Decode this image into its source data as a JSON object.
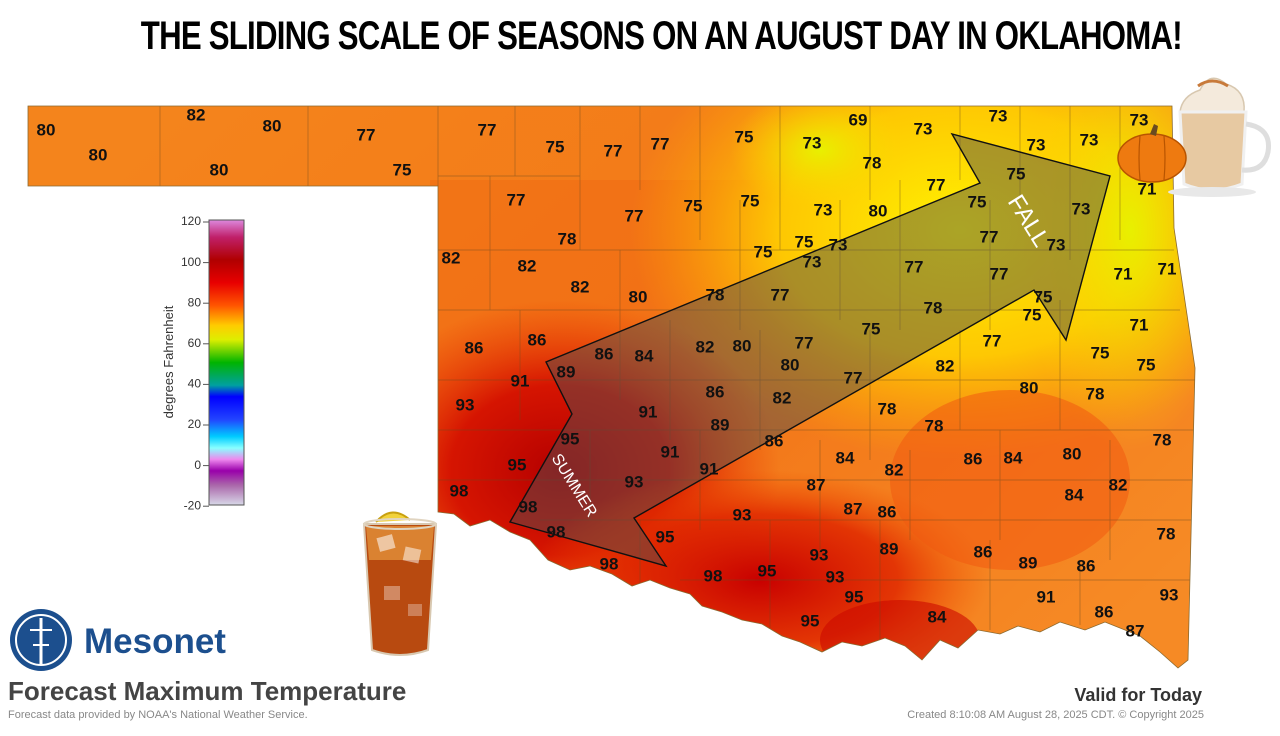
{
  "headline": "THE SLIDING SCALE OF SEASONS ON AN AUGUST DAY IN OKLAHOMA!",
  "legend": {
    "title": "degrees Fahrenheit",
    "ticks": [
      "120",
      "100",
      "80",
      "60",
      "40",
      "20",
      "0",
      "-20"
    ],
    "colors": [
      "#dd88dd",
      "#b00000",
      "#ff2200",
      "#ffff00",
      "#00c800",
      "#0000ff",
      "#66ffff",
      "#aa00aa",
      "#d8d8e8"
    ]
  },
  "arrows": {
    "fall_label": "FALL",
    "summer_label": "SUMMER"
  },
  "temperatures": [
    {
      "v": "80"
    },
    {
      "v": "80"
    },
    {
      "v": "82"
    },
    {
      "v": "80"
    },
    {
      "v": "80"
    },
    {
      "v": "77"
    },
    {
      "v": "75"
    },
    {
      "v": "77"
    },
    {
      "v": "75"
    },
    {
      "v": "77"
    },
    {
      "v": "77"
    },
    {
      "v": "75"
    },
    {
      "v": "73"
    },
    {
      "v": "69"
    },
    {
      "v": "73"
    },
    {
      "v": "73"
    },
    {
      "v": "73"
    },
    {
      "v": "73"
    },
    {
      "v": "73"
    },
    {
      "v": "78"
    },
    {
      "v": "77"
    },
    {
      "v": "75"
    },
    {
      "v": "71"
    },
    {
      "v": "77"
    },
    {
      "v": "77"
    },
    {
      "v": "75"
    },
    {
      "v": "75"
    },
    {
      "v": "73"
    },
    {
      "v": "80"
    },
    {
      "v": "75"
    },
    {
      "v": "73"
    },
    {
      "v": "78"
    },
    {
      "v": "75"
    },
    {
      "v": "75"
    },
    {
      "v": "73"
    },
    {
      "v": "77"
    },
    {
      "v": "73"
    },
    {
      "v": "73"
    },
    {
      "v": "82"
    },
    {
      "v": "82"
    },
    {
      "v": "82"
    },
    {
      "v": "80"
    },
    {
      "v": "78"
    },
    {
      "v": "77"
    },
    {
      "v": "77"
    },
    {
      "v": "77"
    },
    {
      "v": "75"
    },
    {
      "v": "71"
    },
    {
      "v": "71"
    },
    {
      "v": "78"
    },
    {
      "v": "75"
    },
    {
      "v": "71"
    },
    {
      "v": "75"
    },
    {
      "v": "86"
    },
    {
      "v": "86"
    },
    {
      "v": "86"
    },
    {
      "v": "84"
    },
    {
      "v": "82"
    },
    {
      "v": "80"
    },
    {
      "v": "77"
    },
    {
      "v": "80"
    },
    {
      "v": "82"
    },
    {
      "v": "77"
    },
    {
      "v": "75"
    },
    {
      "v": "75"
    },
    {
      "v": "91"
    },
    {
      "v": "89"
    },
    {
      "v": "77"
    },
    {
      "v": "80"
    },
    {
      "v": "78"
    },
    {
      "v": "93"
    },
    {
      "v": "91"
    },
    {
      "v": "86"
    },
    {
      "v": "82"
    },
    {
      "v": "78"
    },
    {
      "v": "95"
    },
    {
      "v": "89"
    },
    {
      "v": "78"
    },
    {
      "v": "78"
    },
    {
      "v": "86"
    },
    {
      "v": "91"
    },
    {
      "v": "95"
    },
    {
      "v": "91"
    },
    {
      "v": "84"
    },
    {
      "v": "86"
    },
    {
      "v": "84"
    },
    {
      "v": "80"
    },
    {
      "v": "93"
    },
    {
      "v": "82"
    },
    {
      "v": "98"
    },
    {
      "v": "87"
    },
    {
      "v": "84"
    },
    {
      "v": "82"
    },
    {
      "v": "98"
    },
    {
      "v": "93"
    },
    {
      "v": "87"
    },
    {
      "v": "86"
    },
    {
      "v": "98"
    },
    {
      "v": "78"
    },
    {
      "v": "95"
    },
    {
      "v": "89"
    },
    {
      "v": "86"
    },
    {
      "v": "89"
    },
    {
      "v": "86"
    },
    {
      "v": "98"
    },
    {
      "v": "93"
    },
    {
      "v": "98"
    },
    {
      "v": "95"
    },
    {
      "v": "93"
    },
    {
      "v": "95"
    },
    {
      "v": "91"
    },
    {
      "v": "84"
    },
    {
      "v": "95"
    },
    {
      "v": "93"
    },
    {
      "v": "86"
    },
    {
      "v": "87"
    }
  ],
  "footer": {
    "brand": "Mesonet",
    "product": "Forecast Maximum Temperature",
    "credit": "Forecast data provided by NOAA's National Weather Service.",
    "valid": "Valid for Today",
    "created": "Created 8:10:08 AM August 28, 2025 CDT. © Copyright 2025"
  }
}
